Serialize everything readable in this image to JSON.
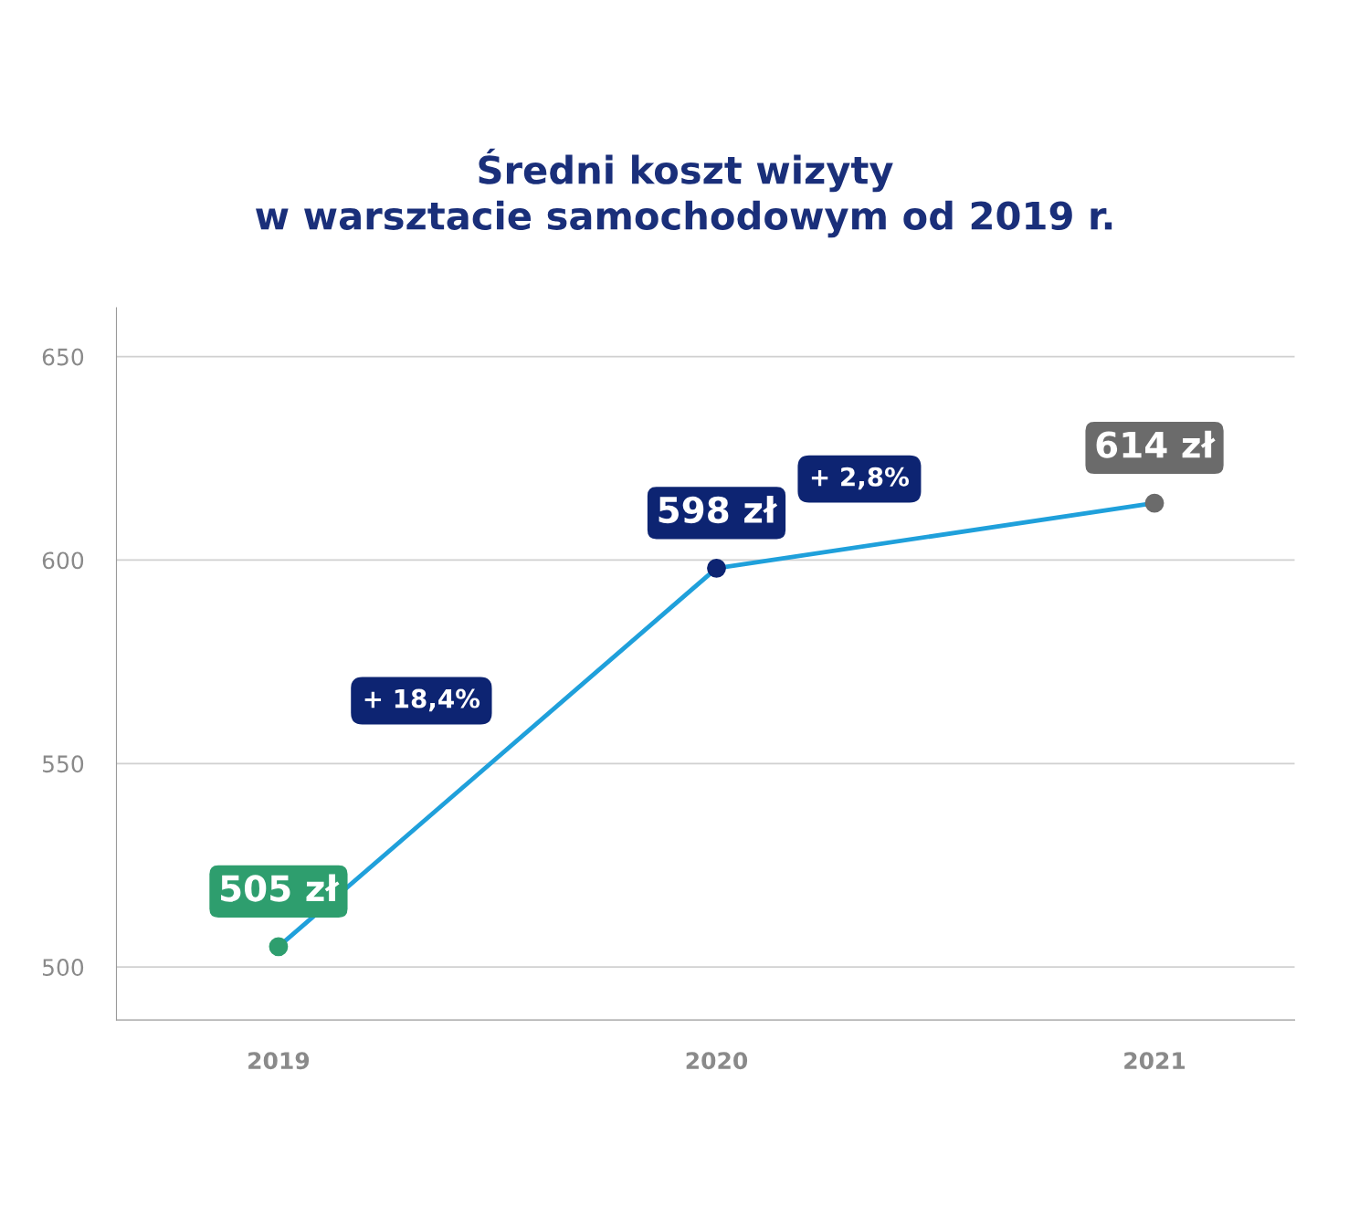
{
  "chart_data": {
    "type": "line",
    "title": "Średni koszt wizyty\nw warsztacie samochodowym od 2019 r.",
    "categories": [
      "2019",
      "2020",
      "2021"
    ],
    "series": [
      {
        "color": "#1fa0db",
        "colors": [
          "#2e9e6e",
          "#0d2472",
          "#6b6b6b"
        ],
        "values": [
          505,
          598,
          614
        ],
        "value_labels": [
          "505 zł",
          "598 zł",
          "614 zł"
        ]
      }
    ],
    "annotations": [
      "+ 18,4%",
      "+ 2,8%"
    ],
    "ylim": [
      487,
      662
    ],
    "yticks": [
      500,
      550,
      600,
      650
    ],
    "grid": "y",
    "marker": "circle",
    "line_style": "solid"
  }
}
